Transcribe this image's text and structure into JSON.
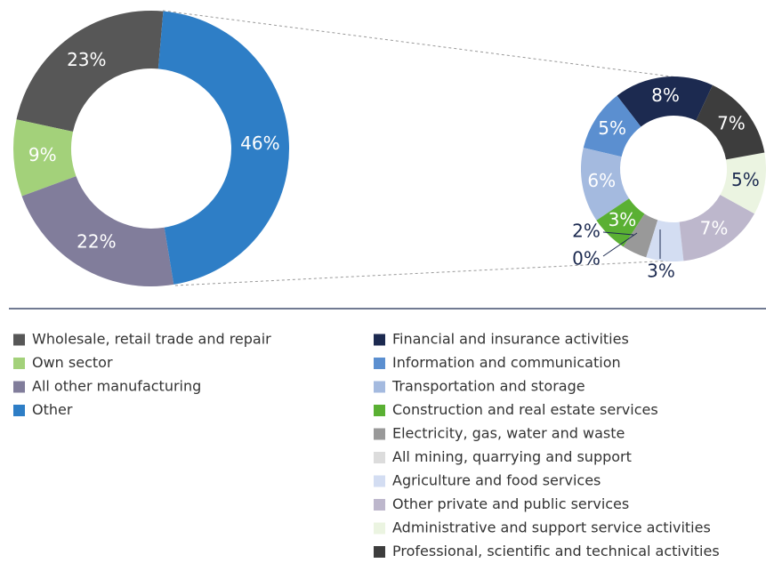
{
  "chart_data": [
    {
      "type": "donut",
      "categories": [
        "Wholesale, retail trade and repair",
        "Own sector",
        "All other manufacturing",
        "Other"
      ],
      "values": [
        23,
        9,
        22,
        46
      ],
      "value_labels": [
        "23%",
        "9%",
        "22%",
        "46%"
      ],
      "colors": [
        "#575757",
        "#a3d17a",
        "#817d9b",
        "#2e7ec6"
      ]
    },
    {
      "type": "donut",
      "categories": [
        "Financial and insurance activities",
        "Information and communication",
        "Transportation and storage",
        "Construction and real estate services",
        "Electricity, gas, water and waste",
        "All mining, quarrying and support",
        "Agriculture and food services",
        "Other private and public services",
        "Administrative and support service activities",
        "Professional, scientific and technical activities"
      ],
      "values": [
        8,
        5,
        6,
        3,
        2,
        0,
        3,
        7,
        5,
        7
      ],
      "value_labels": [
        "8%",
        "5%",
        "6%",
        "3%",
        "2%",
        "0%",
        "3%",
        "7%",
        "5%",
        "7%"
      ],
      "colors": [
        "#1c2a50",
        "#5b8fd0",
        "#a4badf",
        "#5ab033",
        "#999999",
        "#dcdcdc",
        "#d3ddf2",
        "#bdb7cc",
        "#ebf4e1",
        "#3d3d3d"
      ]
    }
  ]
}
